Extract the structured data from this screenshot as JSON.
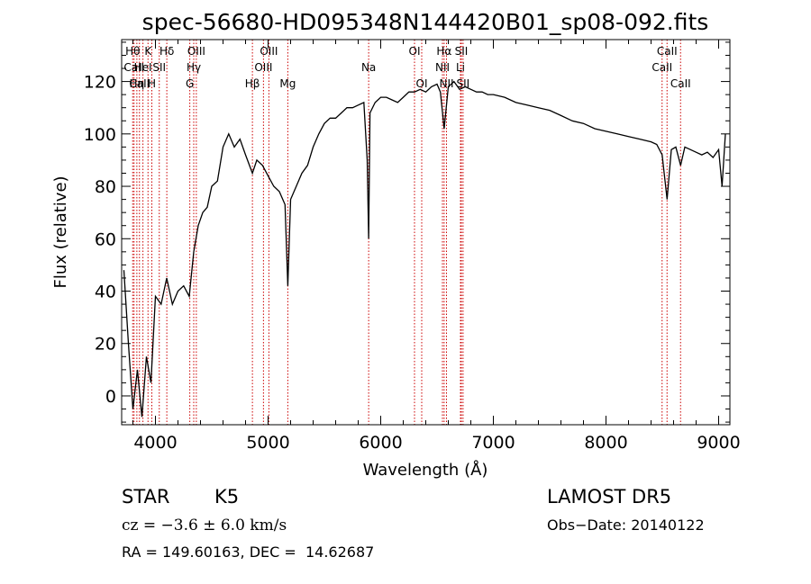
{
  "chart_data": {
    "type": "line",
    "title": "spec-56680-HD095348N144420B01_sp08-092.fits",
    "xlabel": "Wavelength (Å)",
    "ylabel": "Flux (relative)",
    "xlim": [
      3700,
      9100
    ],
    "ylim": [
      -11,
      136
    ],
    "x_ticks": [
      4000,
      5000,
      6000,
      7000,
      8000,
      9000
    ],
    "y_ticks": [
      0,
      20,
      40,
      60,
      80,
      100,
      120
    ],
    "grid": false,
    "line_color": "#000000",
    "marker_line_color": "#cc0000",
    "x": [
      3720,
      3760,
      3800,
      3840,
      3880,
      3920,
      3960,
      4000,
      4050,
      4100,
      4150,
      4200,
      4250,
      4300,
      4340,
      4380,
      4420,
      4460,
      4500,
      4550,
      4600,
      4650,
      4700,
      4750,
      4800,
      4861,
      4900,
      4950,
      5000,
      5050,
      5100,
      5150,
      5175,
      5200,
      5250,
      5300,
      5350,
      5400,
      5450,
      5500,
      5550,
      5600,
      5650,
      5700,
      5750,
      5800,
      5850,
      5880,
      5893,
      5905,
      5950,
      6000,
      6050,
      6100,
      6150,
      6200,
      6250,
      6300,
      6350,
      6400,
      6450,
      6500,
      6530,
      6563,
      6600,
      6650,
      6700,
      6750,
      6800,
      6850,
      6900,
      6950,
      7000,
      7100,
      7200,
      7300,
      7400,
      7500,
      7600,
      7700,
      7800,
      7900,
      8000,
      8100,
      8200,
      8300,
      8400,
      8450,
      8498,
      8542,
      8580,
      8620,
      8662,
      8700,
      8750,
      8800,
      8850,
      8900,
      8950,
      9000,
      9030,
      9060
    ],
    "y": [
      48,
      20,
      -5,
      10,
      -8,
      15,
      5,
      38,
      35,
      45,
      35,
      40,
      42,
      38,
      55,
      65,
      70,
      72,
      80,
      82,
      95,
      100,
      95,
      98,
      92,
      85,
      90,
      88,
      84,
      80,
      78,
      73,
      42,
      75,
      80,
      85,
      88,
      95,
      100,
      104,
      106,
      106,
      108,
      110,
      110,
      111,
      112,
      90,
      60,
      108,
      112,
      114,
      114,
      113,
      112,
      114,
      116,
      116,
      117,
      116,
      118,
      119,
      116,
      102,
      118,
      120,
      117,
      118,
      117,
      116,
      116,
      115,
      115,
      114,
      112,
      111,
      110,
      109,
      107,
      105,
      104,
      102,
      101,
      100,
      99,
      98,
      97,
      96,
      92,
      75,
      94,
      95,
      88,
      95,
      94,
      93,
      92,
      93,
      91,
      94,
      80,
      100
    ],
    "spectral_lines": [
      {
        "label": "Hθ",
        "x": 3798,
        "row": 0
      },
      {
        "label": "CaII",
        "x": 3810,
        "row": 1
      },
      {
        "label": "Hη",
        "x": 3835,
        "row": 2
      },
      {
        "label": "K",
        "x": 3934,
        "row": 0
      },
      {
        "label": "HeI",
        "x": 3889,
        "row": 1
      },
      {
        "label": "CaII",
        "x": 3858,
        "row": 2
      },
      {
        "label": "Hδ",
        "x": 4101,
        "row": 0
      },
      {
        "label": "SII",
        "x": 4034,
        "row": 1
      },
      {
        "label": "H",
        "x": 3968,
        "row": 2
      },
      {
        "label": "OIII",
        "x": 4363,
        "row": 0
      },
      {
        "label": "Hγ",
        "x": 4340,
        "row": 1
      },
      {
        "label": "G",
        "x": 4305,
        "row": 2
      },
      {
        "label": "OIII",
        "x": 5007,
        "row": 0
      },
      {
        "label": "OIII",
        "x": 4959,
        "row": 1
      },
      {
        "label": "Hβ",
        "x": 4861,
        "row": 2
      },
      {
        "label": "Mg",
        "x": 5175,
        "row": 2
      },
      {
        "label": "Na",
        "x": 5893,
        "row": 1
      },
      {
        "label": "OI",
        "x": 6300,
        "row": 0
      },
      {
        "label": "OI",
        "x": 6364,
        "row": 2
      },
      {
        "label": "Hα",
        "x": 6563,
        "row": 0
      },
      {
        "label": "NII",
        "x": 6548,
        "row": 1
      },
      {
        "label": "NII",
        "x": 6584,
        "row": 2
      },
      {
        "label": "SII",
        "x": 6716,
        "row": 0
      },
      {
        "label": "Li",
        "x": 6708,
        "row": 1
      },
      {
        "label": "SII",
        "x": 6731,
        "row": 2
      },
      {
        "label": "CaII",
        "x": 8542,
        "row": 0
      },
      {
        "label": "CaII",
        "x": 8498,
        "row": 1
      },
      {
        "label": "CaII",
        "x": 8662,
        "row": 2
      }
    ]
  },
  "info": {
    "object_type": "STAR",
    "subclass": "K5",
    "survey": "LAMOST DR5",
    "cz": "cz = −3.6 ± 6.0 km/s",
    "obs_date": "Obs−Date: 20140122",
    "coords": "RA = 149.60163, DEC =  14.62687"
  }
}
